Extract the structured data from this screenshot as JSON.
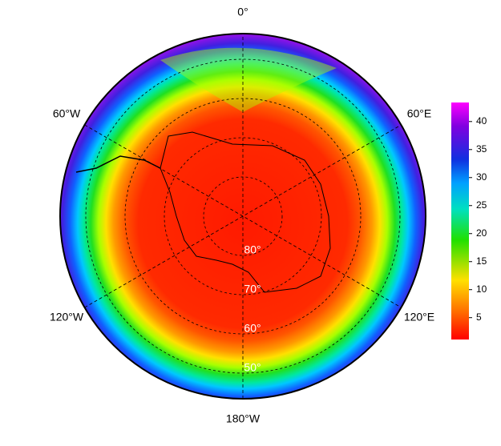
{
  "map": {
    "longitude_labels": [
      "0°",
      "60°E",
      "120°E",
      "180°W",
      "120°W",
      "60°W"
    ],
    "latitude_labels": [
      "80°",
      "70°",
      "60°",
      "50°"
    ]
  },
  "colorbar": {
    "lim": [
      1.1,
      43.4
    ],
    "ticks": [
      5,
      10,
      15,
      20,
      25,
      30,
      35,
      40
    ]
  }
}
